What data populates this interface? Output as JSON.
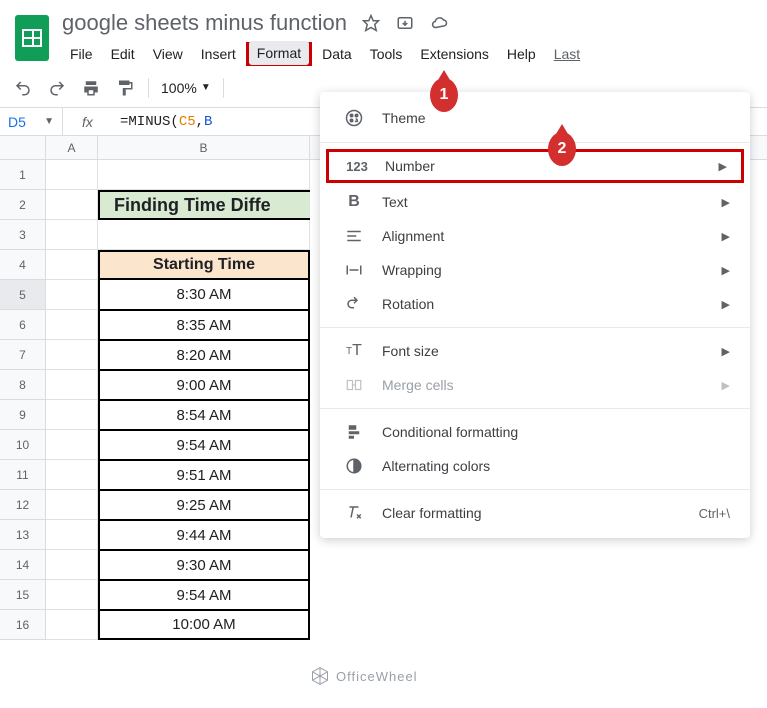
{
  "doc": {
    "title": "google sheets minus function"
  },
  "menubar": {
    "file": "File",
    "edit": "Edit",
    "view": "View",
    "insert": "Insert",
    "format": "Format",
    "data": "Data",
    "tools": "Tools",
    "extensions": "Extensions",
    "help": "Help",
    "last": "Last"
  },
  "toolbar": {
    "zoom": "100%"
  },
  "namebox": {
    "ref": "D5"
  },
  "formula": {
    "prefix": "=MINUS(",
    "ref1": "C5",
    "comma": ",",
    "ref2": "B"
  },
  "columns": {
    "a": "A",
    "b": "B"
  },
  "sheet": {
    "title": "Finding Time Diffe",
    "header": "Starting Time",
    "times": [
      "8:30 AM",
      "8:35 AM",
      "8:20 AM",
      "9:00 AM",
      "8:54 AM",
      "9:54 AM",
      "9:51 AM",
      "9:25 AM",
      "9:44 AM",
      "9:30 AM",
      "9:54 AM",
      "10:00 AM"
    ]
  },
  "dropdown": {
    "theme": "Theme",
    "number": "Number",
    "text": "Text",
    "alignment": "Alignment",
    "wrapping": "Wrapping",
    "rotation": "Rotation",
    "fontsize": "Font size",
    "merge": "Merge cells",
    "conditional": "Conditional formatting",
    "alternating": "Alternating colors",
    "clear": "Clear formatting",
    "clear_shortcut": "Ctrl+\\"
  },
  "callouts": {
    "one": "1",
    "two": "2"
  },
  "watermark": "OfficeWheel",
  "colors": {
    "accent_green": "#0f9d58",
    "highlight_red": "#c00",
    "title_bg": "#d9ead3",
    "header_bg": "#fce5cd"
  }
}
